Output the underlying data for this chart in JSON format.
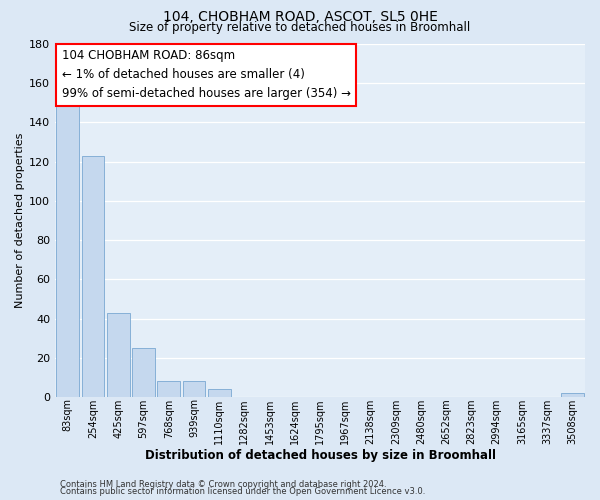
{
  "title": "104, CHOBHAM ROAD, ASCOT, SL5 0HE",
  "subtitle": "Size of property relative to detached houses in Broomhall",
  "xlabel": "Distribution of detached houses by size in Broomhall",
  "ylabel": "Number of detached properties",
  "bar_labels": [
    "83sqm",
    "254sqm",
    "425sqm",
    "597sqm",
    "768sqm",
    "939sqm",
    "1110sqm",
    "1282sqm",
    "1453sqm",
    "1624sqm",
    "1795sqm",
    "1967sqm",
    "2138sqm",
    "2309sqm",
    "2480sqm",
    "2652sqm",
    "2823sqm",
    "2994sqm",
    "3165sqm",
    "3337sqm",
    "3508sqm"
  ],
  "bar_values": [
    150,
    123,
    43,
    25,
    8,
    8,
    4,
    0,
    0,
    0,
    0,
    0,
    0,
    0,
    0,
    0,
    0,
    0,
    0,
    0,
    2
  ],
  "bar_color": "#c5d8ee",
  "bar_edge_color": "#7aa8d2",
  "ylim": [
    0,
    180
  ],
  "yticks": [
    0,
    20,
    40,
    60,
    80,
    100,
    120,
    140,
    160,
    180
  ],
  "annotation_box_text": "104 CHOBHAM ROAD: 86sqm\n← 1% of detached houses are smaller (4)\n99% of semi-detached houses are larger (354) →",
  "bg_color": "#dce8f5",
  "plot_bg_color": "#e4eef8",
  "grid_color": "#ffffff",
  "footer_line1": "Contains HM Land Registry data © Crown copyright and database right 2024.",
  "footer_line2": "Contains public sector information licensed under the Open Government Licence v3.0."
}
